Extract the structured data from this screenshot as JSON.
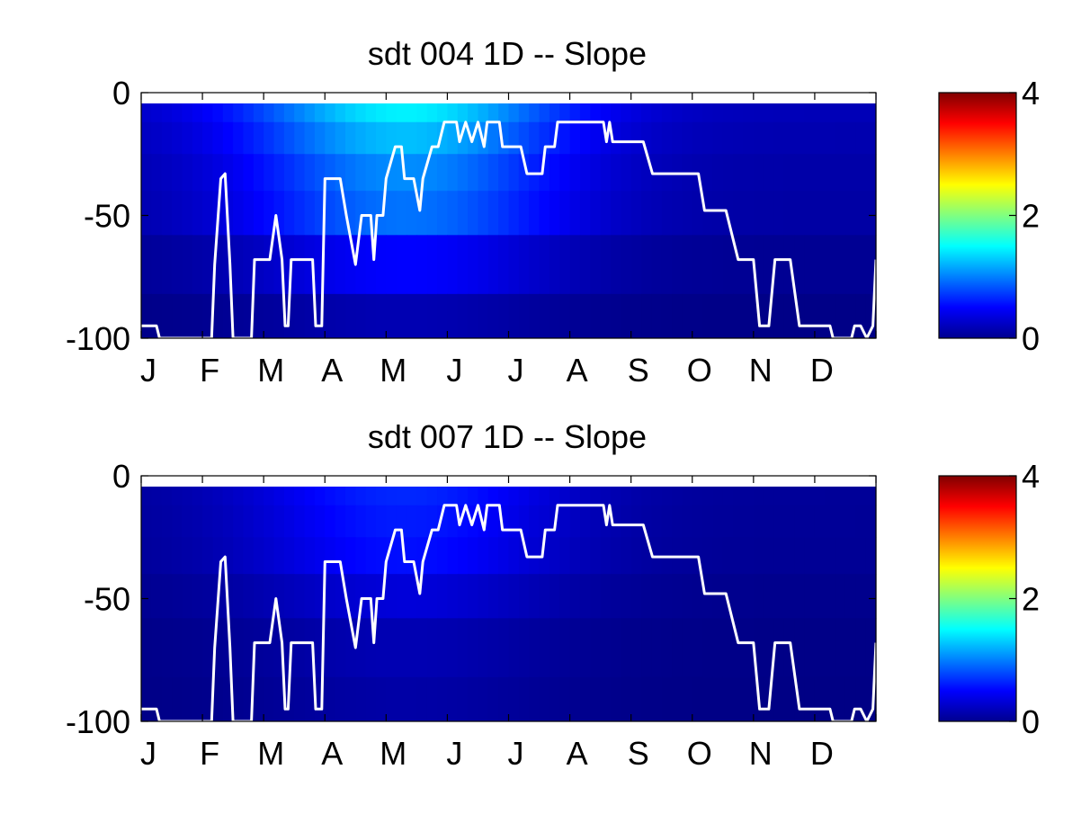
{
  "chart_data": [
    {
      "type": "heatmap",
      "title": "sdt  004 1D   -- Slope",
      "ylim": [
        -100,
        0
      ],
      "yticks": [
        "0",
        "-50",
        "-100"
      ],
      "xticks": [
        "J",
        "F",
        "M",
        "A",
        "M",
        "J",
        "J",
        "A",
        "S",
        "O",
        "N",
        "D"
      ],
      "colorbar": {
        "range": [
          0,
          4
        ],
        "ticks": [
          "0",
          "2",
          "4"
        ],
        "colormap": "jet"
      },
      "depth_bands": [
        {
          "range": [
            0,
            -12
          ],
          "peak_value": 1.45
        },
        {
          "range": [
            -12,
            -25
          ],
          "peak_value": 1.25
        },
        {
          "range": [
            -25,
            -40
          ],
          "peak_value": 1.05
        },
        {
          "range": [
            -40,
            -58
          ],
          "peak_value": 0.95
        },
        {
          "range": [
            -58,
            -82
          ],
          "peak_value": 0.5
        },
        {
          "range": [
            -82,
            -100
          ],
          "peak_value": 0.2
        }
      ],
      "line_series": {
        "color": "#ffffff",
        "points": [
          [
            0,
            -95
          ],
          [
            0.25,
            -95
          ],
          [
            0.3,
            -100
          ],
          [
            1.15,
            -100
          ],
          [
            1.2,
            -70
          ],
          [
            1.3,
            -35
          ],
          [
            1.37,
            -33
          ],
          [
            1.45,
            -70
          ],
          [
            1.5,
            -100
          ],
          [
            1.8,
            -100
          ],
          [
            1.85,
            -68
          ],
          [
            2.1,
            -68
          ],
          [
            2.2,
            -50
          ],
          [
            2.3,
            -68
          ],
          [
            2.35,
            -95
          ],
          [
            2.4,
            -95
          ],
          [
            2.45,
            -68
          ],
          [
            2.8,
            -68
          ],
          [
            2.85,
            -95
          ],
          [
            2.95,
            -95
          ],
          [
            3,
            -35
          ],
          [
            3.25,
            -35
          ],
          [
            3.35,
            -50
          ],
          [
            3.5,
            -70
          ],
          [
            3.6,
            -50
          ],
          [
            3.75,
            -50
          ],
          [
            3.8,
            -68
          ],
          [
            3.85,
            -50
          ],
          [
            3.95,
            -50
          ],
          [
            4,
            -35
          ],
          [
            4.15,
            -22
          ],
          [
            4.25,
            -22
          ],
          [
            4.3,
            -35
          ],
          [
            4.45,
            -35
          ],
          [
            4.55,
            -48
          ],
          [
            4.6,
            -35
          ],
          [
            4.75,
            -22
          ],
          [
            4.85,
            -22
          ],
          [
            4.95,
            -12
          ],
          [
            5.15,
            -12
          ],
          [
            5.2,
            -20
          ],
          [
            5.3,
            -12
          ],
          [
            5.4,
            -20
          ],
          [
            5.5,
            -12
          ],
          [
            5.6,
            -22
          ],
          [
            5.65,
            -12
          ],
          [
            5.85,
            -12
          ],
          [
            5.9,
            -22
          ],
          [
            6.2,
            -22
          ],
          [
            6.3,
            -33
          ],
          [
            6.55,
            -33
          ],
          [
            6.6,
            -22
          ],
          [
            6.75,
            -22
          ],
          [
            6.8,
            -12
          ],
          [
            7.25,
            -12
          ],
          [
            7.55,
            -12
          ],
          [
            7.6,
            -20
          ],
          [
            7.65,
            -12
          ],
          [
            7.7,
            -20
          ],
          [
            8.2,
            -20
          ],
          [
            8.35,
            -33
          ],
          [
            9.1,
            -33
          ],
          [
            9.2,
            -48
          ],
          [
            9.55,
            -48
          ],
          [
            9.75,
            -68
          ],
          [
            10.0,
            -68
          ],
          [
            10.1,
            -95
          ],
          [
            10.25,
            -95
          ],
          [
            10.35,
            -68
          ],
          [
            10.6,
            -68
          ],
          [
            10.75,
            -95
          ],
          [
            11.25,
            -95
          ],
          [
            11.3,
            -100
          ],
          [
            11.6,
            -100
          ],
          [
            11.65,
            -95
          ],
          [
            11.75,
            -95
          ],
          [
            11.85,
            -100
          ],
          [
            11.95,
            -95
          ],
          [
            12,
            -68
          ]
        ]
      }
    },
    {
      "type": "heatmap",
      "title": "sdt  007 1D   -- Slope",
      "ylim": [
        -100,
        0
      ],
      "yticks": [
        "0",
        "-50",
        "-100"
      ],
      "xticks": [
        "J",
        "F",
        "M",
        "A",
        "M",
        "J",
        "J",
        "A",
        "S",
        "O",
        "N",
        "D"
      ],
      "colorbar": {
        "range": [
          0,
          4
        ],
        "ticks": [
          "0",
          "2",
          "4"
        ],
        "colormap": "jet"
      },
      "depth_bands": [
        {
          "range": [
            0,
            -12
          ],
          "peak_value": 0.65
        },
        {
          "range": [
            -12,
            -25
          ],
          "peak_value": 0.6
        },
        {
          "range": [
            -25,
            -40
          ],
          "peak_value": 0.55
        },
        {
          "range": [
            -40,
            -58
          ],
          "peak_value": 0.35
        },
        {
          "range": [
            -58,
            -82
          ],
          "peak_value": 0.2
        },
        {
          "range": [
            -82,
            -100
          ],
          "peak_value": 0.15
        }
      ],
      "line_series": {
        "color": "#ffffff",
        "points": [
          [
            0,
            -95
          ],
          [
            0.25,
            -95
          ],
          [
            0.3,
            -100
          ],
          [
            1.15,
            -100
          ],
          [
            1.2,
            -70
          ],
          [
            1.3,
            -35
          ],
          [
            1.37,
            -33
          ],
          [
            1.45,
            -70
          ],
          [
            1.5,
            -100
          ],
          [
            1.8,
            -100
          ],
          [
            1.85,
            -68
          ],
          [
            2.1,
            -68
          ],
          [
            2.2,
            -50
          ],
          [
            2.3,
            -68
          ],
          [
            2.35,
            -95
          ],
          [
            2.4,
            -95
          ],
          [
            2.45,
            -68
          ],
          [
            2.8,
            -68
          ],
          [
            2.85,
            -95
          ],
          [
            2.95,
            -95
          ],
          [
            3,
            -35
          ],
          [
            3.25,
            -35
          ],
          [
            3.35,
            -50
          ],
          [
            3.5,
            -70
          ],
          [
            3.6,
            -50
          ],
          [
            3.75,
            -50
          ],
          [
            3.8,
            -68
          ],
          [
            3.85,
            -50
          ],
          [
            3.95,
            -50
          ],
          [
            4,
            -35
          ],
          [
            4.15,
            -22
          ],
          [
            4.25,
            -22
          ],
          [
            4.3,
            -35
          ],
          [
            4.45,
            -35
          ],
          [
            4.55,
            -48
          ],
          [
            4.6,
            -35
          ],
          [
            4.75,
            -22
          ],
          [
            4.85,
            -22
          ],
          [
            4.95,
            -12
          ],
          [
            5.15,
            -12
          ],
          [
            5.2,
            -20
          ],
          [
            5.3,
            -12
          ],
          [
            5.4,
            -20
          ],
          [
            5.5,
            -12
          ],
          [
            5.6,
            -22
          ],
          [
            5.65,
            -12
          ],
          [
            5.85,
            -12
          ],
          [
            5.9,
            -22
          ],
          [
            6.2,
            -22
          ],
          [
            6.3,
            -33
          ],
          [
            6.55,
            -33
          ],
          [
            6.6,
            -22
          ],
          [
            6.75,
            -22
          ],
          [
            6.8,
            -12
          ],
          [
            7.25,
            -12
          ],
          [
            7.55,
            -12
          ],
          [
            7.6,
            -20
          ],
          [
            7.65,
            -12
          ],
          [
            7.7,
            -20
          ],
          [
            8.2,
            -20
          ],
          [
            8.35,
            -33
          ],
          [
            9.1,
            -33
          ],
          [
            9.2,
            -48
          ],
          [
            9.55,
            -48
          ],
          [
            9.75,
            -68
          ],
          [
            10.0,
            -68
          ],
          [
            10.1,
            -95
          ],
          [
            10.25,
            -95
          ],
          [
            10.35,
            -68
          ],
          [
            10.6,
            -68
          ],
          [
            10.75,
            -95
          ],
          [
            11.25,
            -95
          ],
          [
            11.3,
            -100
          ],
          [
            11.6,
            -100
          ],
          [
            11.65,
            -95
          ],
          [
            11.75,
            -95
          ],
          [
            11.85,
            -100
          ],
          [
            11.95,
            -95
          ],
          [
            12,
            -68
          ]
        ]
      }
    }
  ]
}
